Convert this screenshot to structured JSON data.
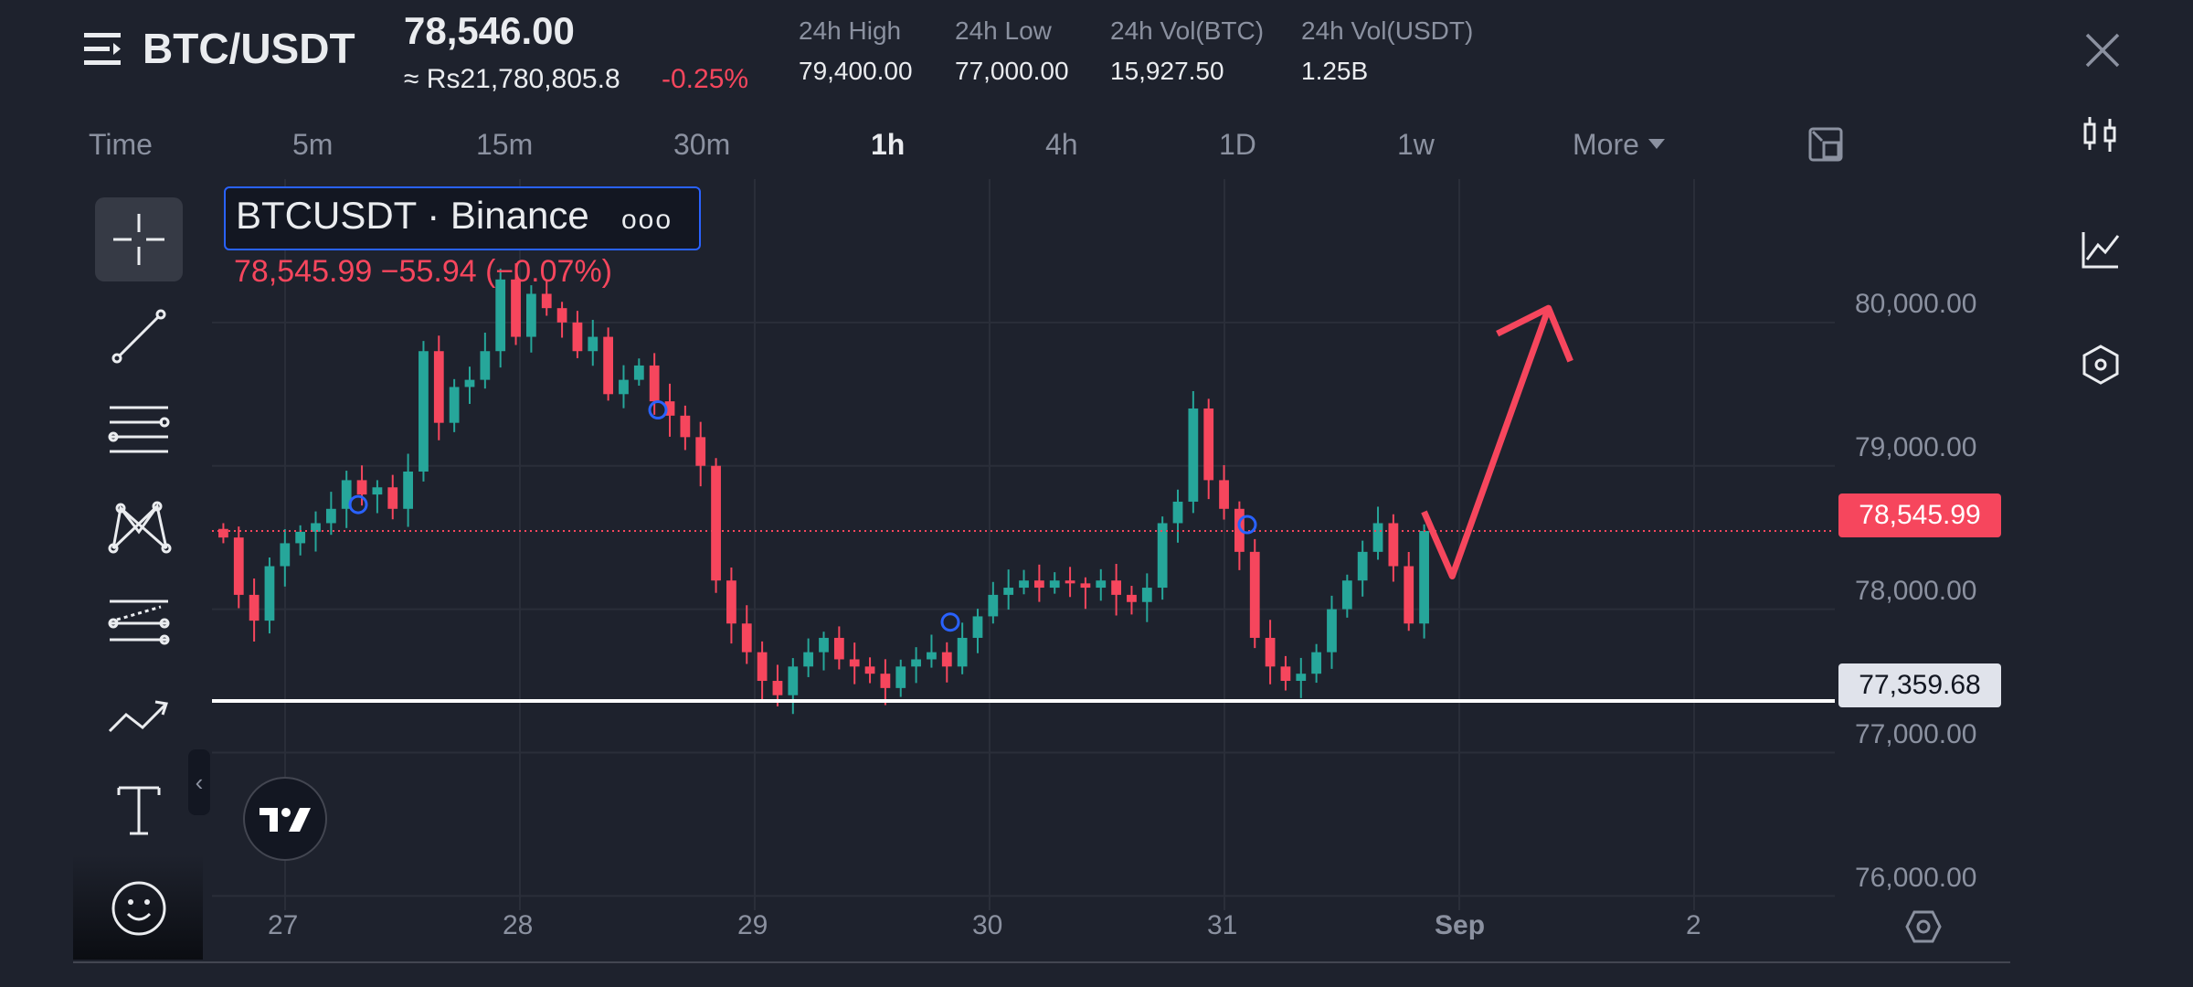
{
  "header": {
    "pair": "BTC/USDT",
    "last_price": "78,546.00",
    "fiat_price": "≈ Rs21,780,805.8",
    "change_pct": "-0.25%",
    "stats": [
      {
        "label": "24h High",
        "value": "79,400.00"
      },
      {
        "label": "24h Low",
        "value": "77,000.00"
      },
      {
        "label": "24h Vol(BTC)",
        "value": "15,927.50"
      },
      {
        "label": "24h Vol(USDT)",
        "value": "1.25B"
      }
    ]
  },
  "timeframes": {
    "time_label": "Time",
    "items": [
      "5m",
      "15m",
      "30m",
      "1h",
      "4h",
      "1D",
      "1w"
    ],
    "active": "1h",
    "more_label": "More"
  },
  "legend": {
    "title": "BTCUSDT · Binance",
    "dots": "ooo",
    "values": "78,545.99  −55.94 (−0.07%)"
  },
  "price_tags": {
    "current": "78,545.99",
    "horizontal_line": "77,359.68"
  },
  "colors": {
    "background": "#1e222d",
    "up": "#26a69a",
    "down": "#f6465d",
    "accent_blue": "#2962ff",
    "text_muted": "#8b91a0"
  },
  "tools": [
    "crosshair-icon",
    "trend-line-icon",
    "horizontal-lines-icon",
    "pattern-icon",
    "forecast-icon",
    "polyline-icon",
    "text-icon",
    "emoji-icon"
  ],
  "right_rail": [
    "candlestick-icon",
    "line-chart-icon",
    "indicator-icon"
  ],
  "chart_data": {
    "type": "candlestick",
    "y_ticks": [
      "80,000.00",
      "79,000.00",
      "78,000.00",
      "77,000.00",
      "76,000.00"
    ],
    "x_ticks": [
      "27",
      "28",
      "29",
      "30",
      "31",
      "Sep",
      "2"
    ],
    "ylim": [
      75900,
      81000
    ],
    "current_price": 78545.99,
    "horizontal_line": 77359.68,
    "drawn_arrow": [
      {
        "x": "31.85",
        "y": 78680
      },
      {
        "x": "31.97",
        "y": 78230
      },
      {
        "x": "32.38",
        "y": 80100
      }
    ],
    "closes": [
      78500,
      78100,
      77920,
      78300,
      78460,
      78540,
      78600,
      78700,
      78900,
      78800,
      78850,
      78700,
      78960,
      79800,
      79300,
      79550,
      79600,
      79800,
      80300,
      79900,
      80200,
      80100,
      80000,
      79800,
      79900,
      79500,
      79600,
      79700,
      79450,
      79350,
      79200,
      79000,
      78200,
      77900,
      77700,
      77500,
      77400,
      77600,
      77700,
      77800,
      77650,
      77600,
      77550,
      77450,
      77600,
      77650,
      77700,
      77600,
      77800,
      77950,
      78100,
      78150,
      78200,
      78150,
      78200,
      78180,
      78150,
      78200,
      78100,
      78050,
      78150,
      78600,
      78750,
      79400,
      78900,
      78700,
      78400,
      77800,
      77600,
      77500,
      77550,
      77700,
      78000,
      78200,
      78400,
      78600,
      78300,
      77900,
      78546
    ]
  }
}
